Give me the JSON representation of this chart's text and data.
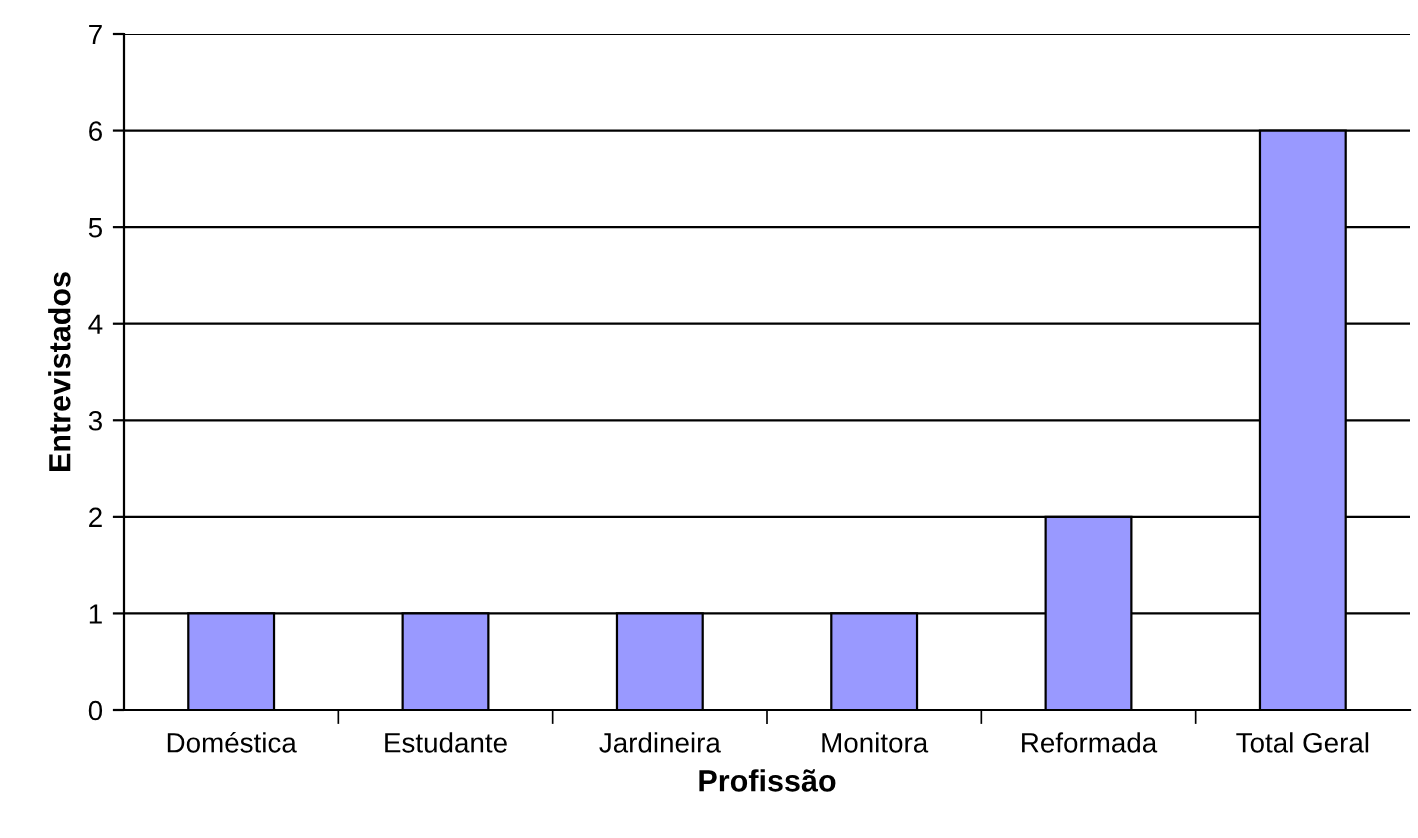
{
  "chart_data": {
    "type": "bar",
    "xlabel": "Profissão",
    "ylabel": "Entrevistados",
    "categories": [
      "Doméstica",
      "Estudante",
      "Jardineira",
      "Monitora",
      "Reformada",
      "Total Geral"
    ],
    "values": [
      1,
      1,
      1,
      1,
      2,
      6
    ],
    "color": "#9999ff",
    "ylim": [
      0,
      7
    ],
    "yticks": [
      0,
      1,
      2,
      3,
      4,
      5,
      6,
      7
    ],
    "grid": "y",
    "legend": false
  }
}
